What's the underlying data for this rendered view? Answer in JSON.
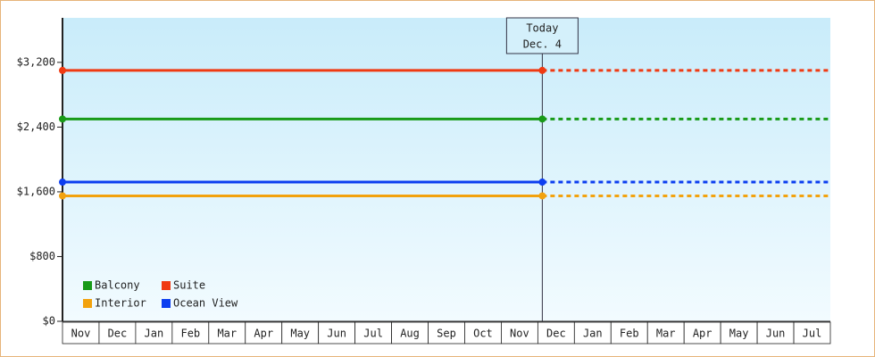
{
  "chart_data": {
    "type": "line",
    "categories": [
      "Nov",
      "Dec",
      "Jan",
      "Feb",
      "Mar",
      "Apr",
      "May",
      "Jun",
      "Jul",
      "Aug",
      "Sep",
      "Oct",
      "Nov",
      "Dec",
      "Jan",
      "Feb",
      "Mar",
      "Apr",
      "May",
      "Jun",
      "Jul"
    ],
    "series": [
      {
        "name": "Balcony",
        "color": "#189a18",
        "value": 2500
      },
      {
        "name": "Suite",
        "color": "#f03a12",
        "value": 3100
      },
      {
        "name": "Interior",
        "color": "#f2a20e",
        "value": 1550
      },
      {
        "name": "Ocean View",
        "color": "#0c3ef0",
        "value": 1720
      }
    ],
    "annotation": [
      "Today",
      "Dec. 4"
    ],
    "ylim": [
      0,
      3750
    ],
    "yticks": [
      {
        "value": 0,
        "label": "$0"
      },
      {
        "value": 800,
        "label": "$800"
      },
      {
        "value": 1600,
        "label": "$1,600"
      },
      {
        "value": 2400,
        "label": "$2,400"
      },
      {
        "value": 3200,
        "label": "$3,200"
      }
    ]
  }
}
